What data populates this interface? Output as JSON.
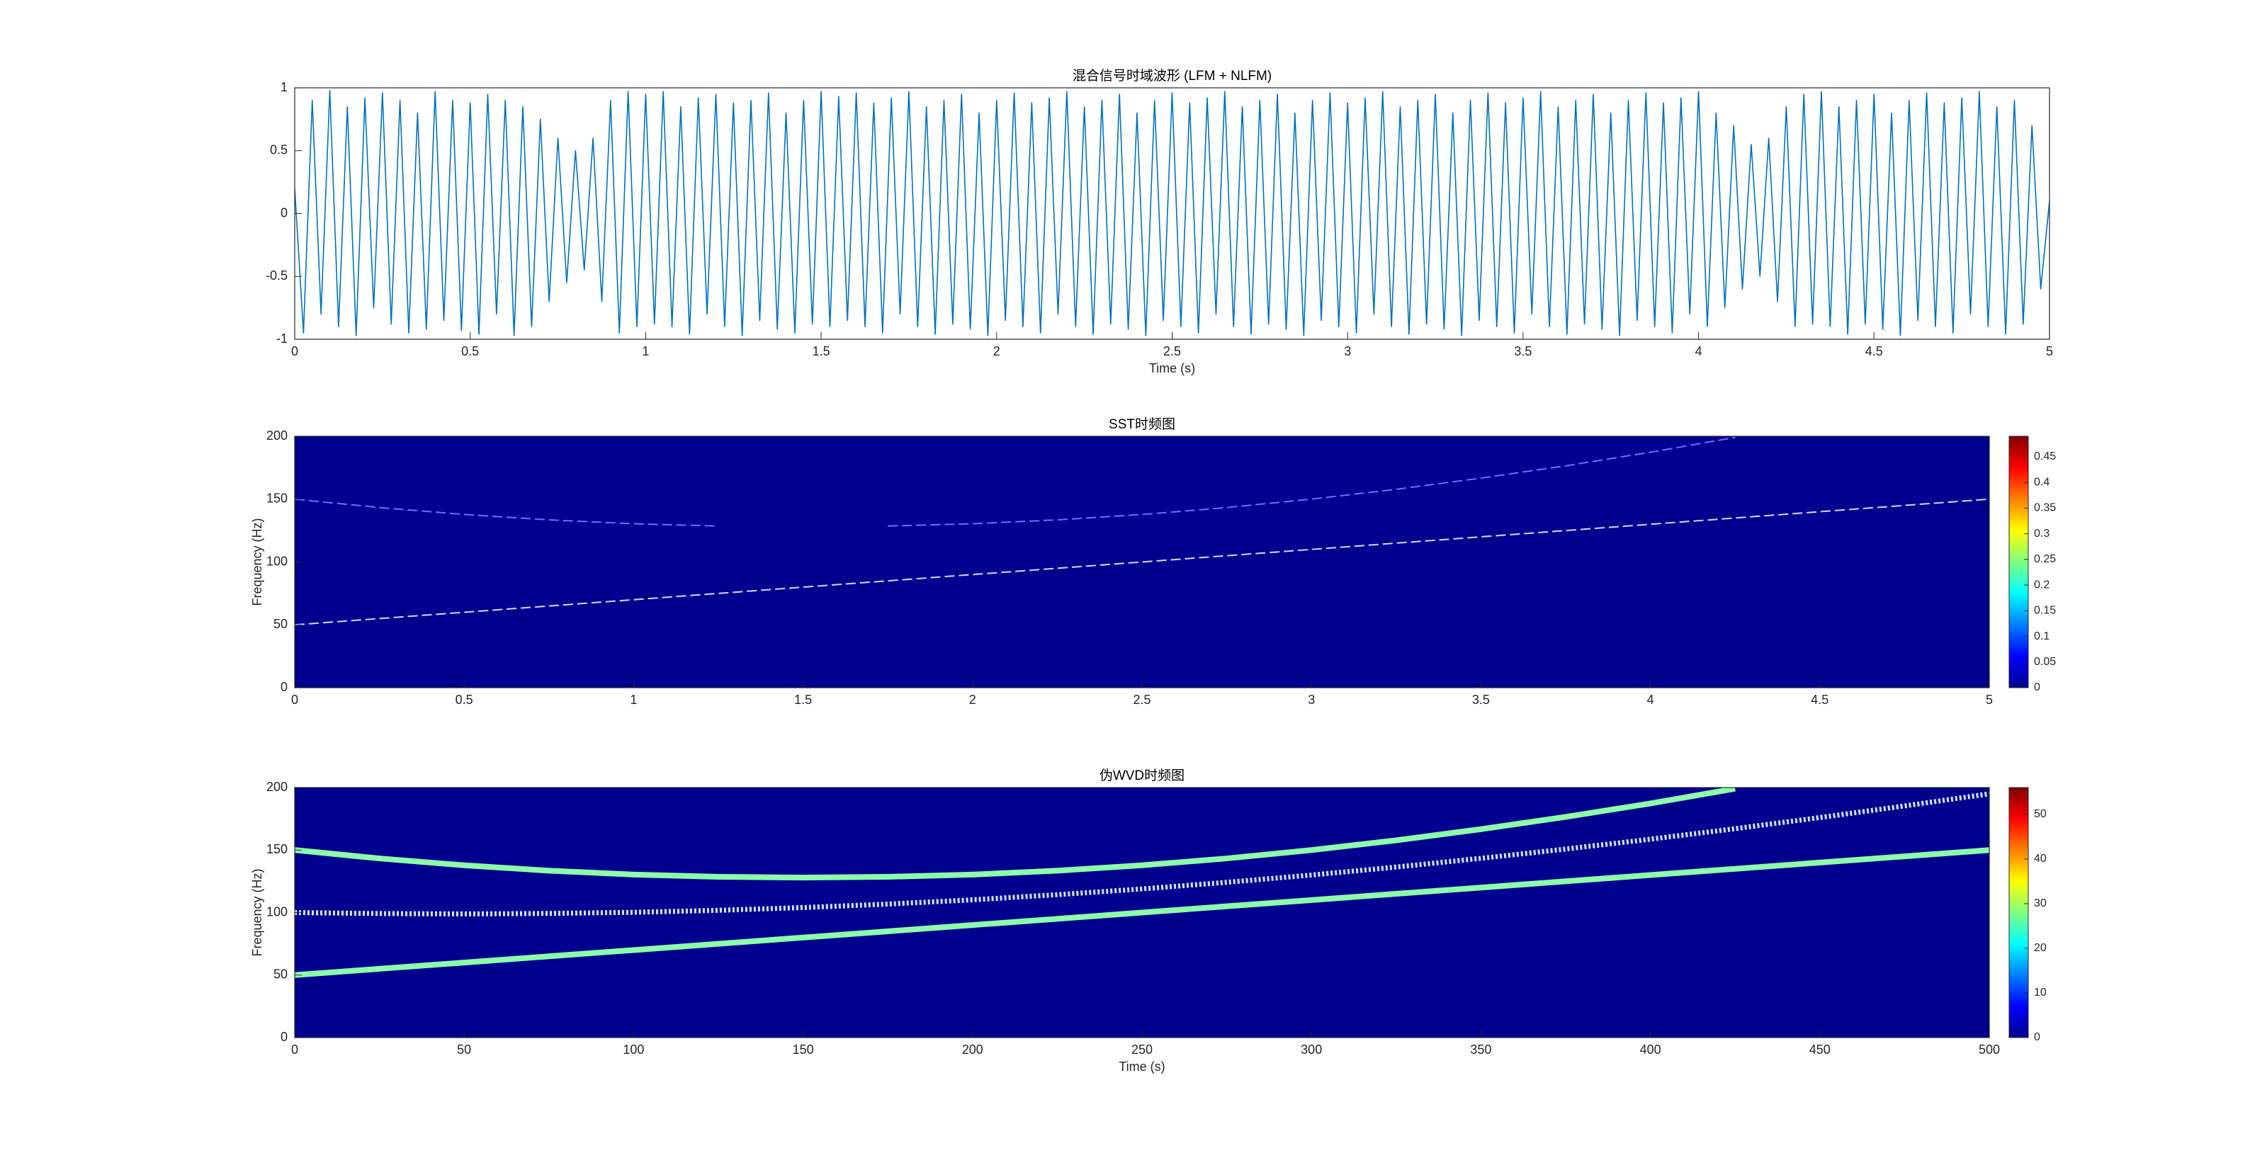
{
  "chart_data": [
    {
      "type": "line",
      "title": "混合信号时域波形 (LFM + NLFM)",
      "xlabel": "Time (s)",
      "xlim": [
        0,
        5
      ],
      "xticks": [
        0,
        0.5,
        1,
        1.5,
        2,
        2.5,
        3,
        3.5,
        4,
        4.5,
        5
      ],
      "ylim": [
        -1,
        1
      ],
      "yticks": [
        -1,
        -0.5,
        0,
        0.5,
        1
      ],
      "x": [
        0,
        0.025,
        0.05,
        0.075,
        0.1,
        0.125,
        0.15,
        0.175,
        0.2,
        0.225,
        0.25,
        0.275,
        0.3,
        0.325,
        0.35,
        0.375,
        0.4,
        0.425,
        0.45,
        0.475,
        0.5,
        0.525,
        0.55,
        0.575,
        0.6,
        0.625,
        0.65,
        0.675,
        0.7,
        0.725,
        0.75,
        0.775,
        0.8,
        0.825,
        0.85,
        0.875,
        0.9,
        0.925,
        0.95,
        0.975,
        1,
        1.025,
        1.05,
        1.075,
        1.1,
        1.125,
        1.15,
        1.175,
        1.2,
        1.225,
        1.25,
        1.275,
        1.3,
        1.325,
        1.35,
        1.375,
        1.4,
        1.425,
        1.45,
        1.475,
        1.5,
        1.525,
        1.55,
        1.575,
        1.6,
        1.625,
        1.65,
        1.675,
        1.7,
        1.725,
        1.75,
        1.775,
        1.8,
        1.825,
        1.85,
        1.875,
        1.9,
        1.925,
        1.95,
        1.975,
        2,
        2.025,
        2.05,
        2.075,
        2.1,
        2.125,
        2.15,
        2.175,
        2.2,
        2.225,
        2.25,
        2.275,
        2.3,
        2.325,
        2.35,
        2.375,
        2.4,
        2.425,
        2.45,
        2.475,
        2.5,
        2.525,
        2.55,
        2.575,
        2.6,
        2.625,
        2.65,
        2.675,
        2.7,
        2.725,
        2.75,
        2.775,
        2.8,
        2.825,
        2.85,
        2.875,
        2.9,
        2.925,
        2.95,
        2.975,
        3,
        3.025,
        3.05,
        3.075,
        3.1,
        3.125,
        3.15,
        3.175,
        3.2,
        3.225,
        3.25,
        3.275,
        3.3,
        3.325,
        3.35,
        3.375,
        3.4,
        3.425,
        3.45,
        3.475,
        3.5,
        3.525,
        3.55,
        3.575,
        3.6,
        3.625,
        3.65,
        3.675,
        3.7,
        3.725,
        3.75,
        3.775,
        3.8,
        3.825,
        3.85,
        3.875,
        3.9,
        3.925,
        3.95,
        3.975,
        4,
        4.025,
        4.05,
        4.075,
        4.1,
        4.125,
        4.15,
        4.175,
        4.2,
        4.225,
        4.25,
        4.275,
        4.3,
        4.325,
        4.35,
        4.375,
        4.4,
        4.425,
        4.45,
        4.475,
        4.5,
        4.525,
        4.55,
        4.575,
        4.6,
        4.625,
        4.65,
        4.675,
        4.7,
        4.725,
        4.75,
        4.775,
        4.8,
        4.825,
        4.85,
        4.875,
        4.9,
        4.925,
        4.95,
        4.975,
        5
      ],
      "series": [
        {
          "color": "#0072bd",
          "values": [
            0.2,
            -0.95,
            0.9,
            -0.8,
            0.98,
            -0.9,
            0.85,
            -0.97,
            0.92,
            -0.75,
            0.96,
            -0.88,
            0.9,
            -0.95,
            0.8,
            -0.92,
            0.97,
            -0.85,
            0.9,
            -0.93,
            0.88,
            -0.96,
            0.95,
            -0.8,
            0.9,
            -0.97,
            0.85,
            -0.9,
            0.75,
            -0.7,
            0.6,
            -0.55,
            0.5,
            -0.45,
            0.6,
            -0.7,
            0.9,
            -0.95,
            0.97,
            -0.9,
            0.95,
            -0.88,
            0.97,
            -0.9,
            0.85,
            -0.96,
            0.92,
            -0.8,
            0.95,
            -0.9,
            0.88,
            -0.97,
            0.9,
            -0.85,
            0.96,
            -0.92,
            0.8,
            -0.95,
            0.9,
            -0.88,
            0.97,
            -0.9,
            0.93,
            -0.85,
            0.96,
            -0.9,
            0.88,
            -0.95,
            0.92,
            -0.8,
            0.97,
            -0.9,
            0.85,
            -0.96,
            0.9,
            -0.88,
            0.95,
            -0.92,
            0.8,
            -0.97,
            0.9,
            -0.85,
            0.96,
            -0.9,
            0.88,
            -0.95,
            0.92,
            -0.8,
            0.97,
            -0.9,
            0.85,
            -0.96,
            0.9,
            -0.88,
            0.95,
            -0.92,
            0.8,
            -0.97,
            0.9,
            -0.85,
            0.96,
            -0.9,
            0.88,
            -0.95,
            0.92,
            -0.8,
            0.97,
            -0.9,
            0.85,
            -0.96,
            0.9,
            -0.88,
            0.95,
            -0.92,
            0.8,
            -0.97,
            0.9,
            -0.85,
            0.96,
            -0.9,
            0.88,
            -0.95,
            0.92,
            -0.8,
            0.97,
            -0.9,
            0.85,
            -0.96,
            0.9,
            -0.88,
            0.95,
            -0.92,
            0.8,
            -0.97,
            0.9,
            -0.85,
            0.96,
            -0.9,
            0.88,
            -0.95,
            0.92,
            -0.8,
            0.97,
            -0.9,
            0.85,
            -0.96,
            0.9,
            -0.88,
            0.95,
            -0.92,
            0.8,
            -0.97,
            0.9,
            -0.85,
            0.96,
            -0.9,
            0.88,
            -0.95,
            0.92,
            -0.8,
            0.97,
            -0.9,
            0.8,
            -0.75,
            0.7,
            -0.6,
            0.55,
            -0.5,
            0.6,
            -0.7,
            0.85,
            -0.9,
            0.95,
            -0.88,
            0.97,
            -0.9,
            0.85,
            -0.96,
            0.9,
            -0.88,
            0.95,
            -0.92,
            0.8,
            -0.97,
            0.9,
            -0.85,
            0.96,
            -0.9,
            0.88,
            -0.95,
            0.92,
            -0.8,
            0.97,
            -0.9,
            0.85,
            -0.96,
            0.9,
            -0.88,
            0.7,
            -0.6,
            0.1
          ]
        }
      ]
    },
    {
      "type": "heatmap",
      "title": "SST时频图",
      "ylabel": "Frequency (Hz)",
      "background": "#00008f",
      "xlim": [
        0,
        5
      ],
      "xticks": [
        0,
        0.5,
        1,
        1.5,
        2,
        2.5,
        3,
        3.5,
        4,
        4.5,
        5
      ],
      "ylim": [
        0,
        200
      ],
      "yticks": [
        0,
        50,
        100,
        150,
        200
      ],
      "clim": [
        0,
        0.49
      ],
      "cticks": [
        0,
        0.05,
        0.1,
        0.15,
        0.2,
        0.25,
        0.3,
        0.35,
        0.4,
        0.45
      ],
      "x": [
        0,
        0.25,
        0.5,
        0.75,
        1,
        1.25,
        1.5,
        1.75,
        2,
        2.25,
        2.5,
        2.75,
        3,
        3.25,
        3.5,
        3.75,
        4,
        4.25,
        4.5,
        4.75,
        5
      ],
      "series": [
        {
          "color": "#d8d8ff",
          "values": [
            50,
            55,
            60,
            65,
            70,
            75,
            80,
            85,
            90,
            95,
            100,
            105,
            110,
            115,
            120,
            125,
            130,
            135,
            140,
            145,
            150
          ]
        },
        {
          "color": "#6a70ff",
          "values": [
            150,
            143.3,
            137.8,
            133.5,
            130.4,
            128.6,
            null,
            128.6,
            130.4,
            133.5,
            137.8,
            143.3,
            150,
            157.8,
            166.7,
            176.5,
            187.3,
            199.1,
            null,
            null,
            null
          ]
        }
      ]
    },
    {
      "type": "heatmap",
      "title": "伪WVD时频图",
      "xlabel": "Time (s)",
      "ylabel": "Frequency (Hz)",
      "background": "#00008f",
      "xlim": [
        0,
        500
      ],
      "xticks": [
        0,
        50,
        100,
        150,
        200,
        250,
        300,
        350,
        400,
        450,
        500
      ],
      "ylim": [
        0,
        200
      ],
      "yticks": [
        0,
        50,
        100,
        150,
        200
      ],
      "clim": [
        0,
        56
      ],
      "cticks": [
        0,
        10,
        20,
        30,
        40,
        50
      ],
      "x": [
        0,
        25,
        50,
        75,
        100,
        125,
        150,
        175,
        200,
        225,
        250,
        275,
        300,
        325,
        350,
        375,
        400,
        425,
        450,
        475,
        500
      ],
      "series": [
        {
          "color": "#8dffa8",
          "values": [
            50,
            55,
            60,
            65,
            70,
            75,
            80,
            85,
            90,
            95,
            100,
            105,
            110,
            115,
            120,
            125,
            130,
            135,
            140,
            145,
            150
          ]
        },
        {
          "color": "#8dffa8",
          "values": [
            150,
            143.3,
            137.8,
            133.5,
            130.4,
            128.6,
            128,
            128.6,
            130.4,
            133.5,
            137.8,
            143.3,
            150,
            157.8,
            166.7,
            176.5,
            187.3,
            199.1,
            null,
            null,
            null
          ]
        },
        {
          "color": "#cfe6ff",
          "dashed": true,
          "values": [
            100,
            99.2,
            98.9,
            99.3,
            100.2,
            101.8,
            104,
            106.8,
            110.2,
            114.3,
            118.9,
            124.2,
            130,
            136.4,
            143.4,
            150.8,
            158.7,
            167.1,
            176,
            185.3,
            195
          ]
        }
      ]
    }
  ]
}
